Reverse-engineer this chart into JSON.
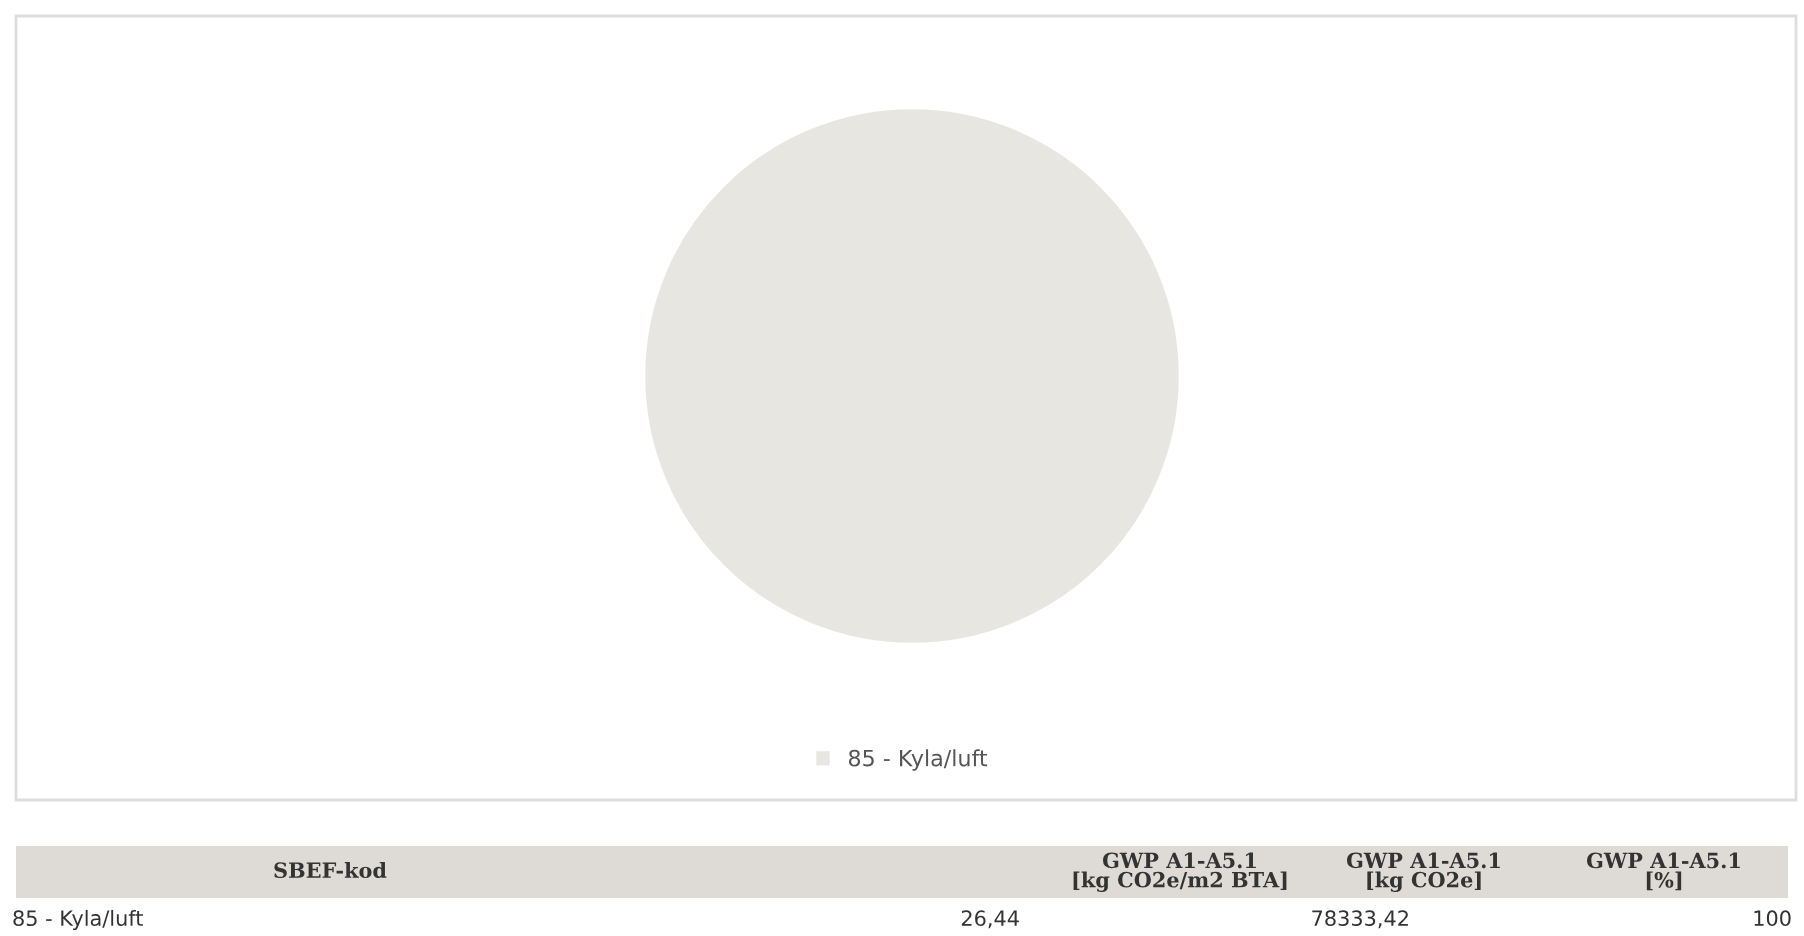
{
  "chart_data": {
    "type": "pie",
    "categories": [
      "85 - Kyla/luft"
    ],
    "values": [
      100
    ],
    "colors": [
      "#e8e6e1"
    ],
    "legend": "bottom",
    "annotations": [
      "SBEF-kod",
      "GWP A1-A5.1\n[kg CO2e/m2 BTA]",
      "GWP A1-A5.1\n[kg CO2e]",
      "GWP A1-A5.1\n[%]",
      "85 - Kyla/luft",
      "26,44",
      "78333,42",
      "100"
    ]
  }
}
